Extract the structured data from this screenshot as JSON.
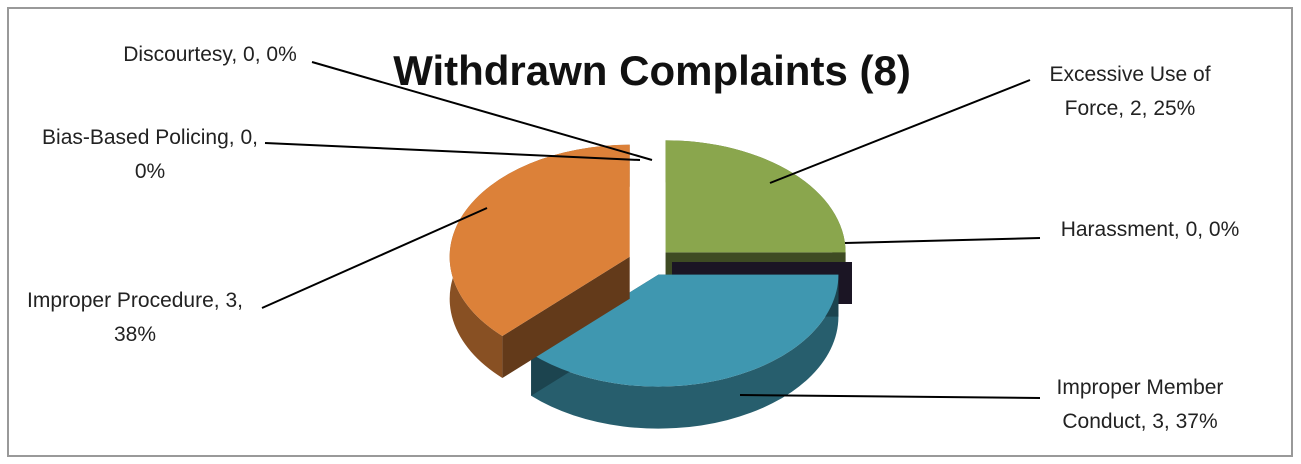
{
  "chart_data": {
    "type": "pie3d",
    "title": "Withdrawn Complaints (8)",
    "categories": [
      "Excessive Use of Force, 2, 25%",
      "Harassment, 0, 0%",
      "Improper Member Conduct, 3, 37%",
      "Improper Procedure, 3, 38%",
      "Bias-Based Policing, 0, 0%",
      "Discourtesy, 0, 0%"
    ],
    "values": [
      2,
      0,
      3,
      3,
      0,
      0
    ],
    "colors": [
      "#8aa64d",
      "#3b2f4f",
      "#3f97b0",
      "#dc8139",
      "#4f81bd",
      "#c0504d"
    ]
  }
}
